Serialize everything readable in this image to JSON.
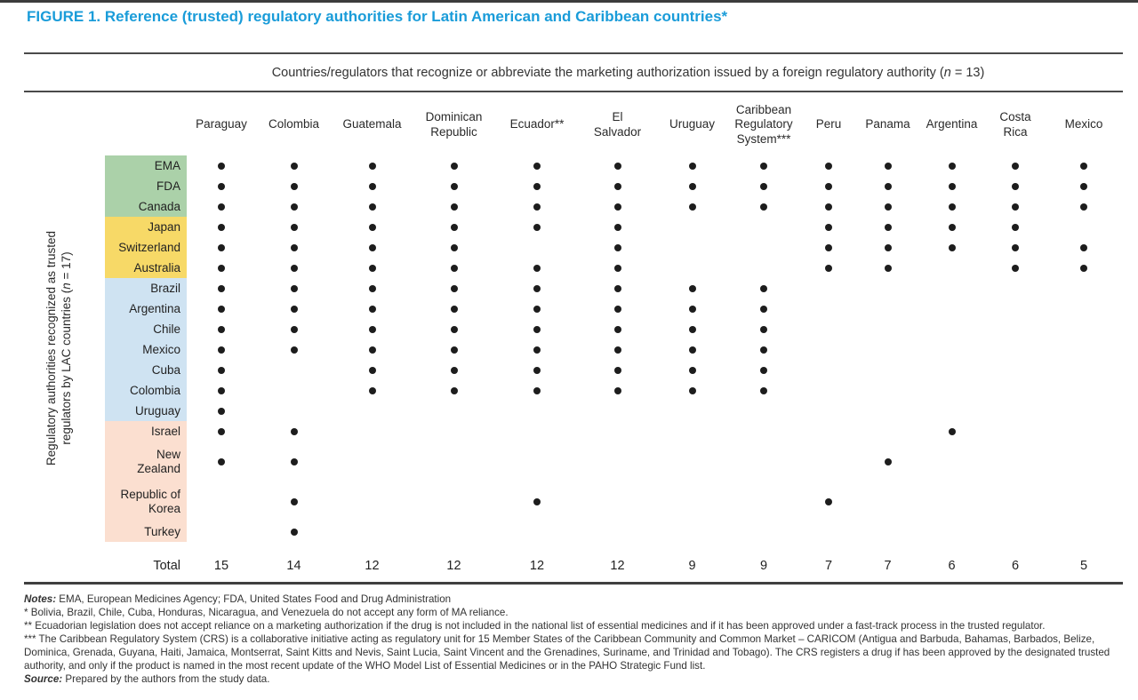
{
  "title": "FIGURE 1. Reference (trusted) regulatory authorities for Latin American and Caribbean countries*",
  "accent_color": "#1a9cd9",
  "span_header": {
    "pre": "Countries/regulators that recognize or abbreviate the marketing authorization issued by a foreign regulatory authority (",
    "n": "n",
    "post": " = 13)"
  },
  "y_axis": {
    "line1": "Regulatory authorities recognized as trusted",
    "line2_pre": "regulators by LAC countries (",
    "n": "n",
    "line2_post": " = 17)"
  },
  "chart_data": {
    "type": "table",
    "title": "Dot matrix of trusted regulatory authorities (rows) recognized by LAC countries/regulators (columns)",
    "dot_color": "#1d1d1d",
    "groups": {
      "green": "#abd1a9",
      "yellow": "#f7d967",
      "blue": "#cfe3f2",
      "pink": "#fbdfd0"
    },
    "columns": [
      "Paraguay",
      "Colombia",
      "Guatemala",
      "Dominican\nRepublic",
      "Ecuador**",
      "El\nSalvador",
      "Uruguay",
      "Caribbean\nRegulatory\nSystem***",
      "Peru",
      "Panama",
      "Argentina",
      "Costa\nRica",
      "Mexico"
    ],
    "rows": [
      {
        "label": "EMA",
        "group": "green",
        "marks": [
          1,
          1,
          1,
          1,
          1,
          1,
          1,
          1,
          1,
          1,
          1,
          1,
          1
        ]
      },
      {
        "label": "FDA",
        "group": "green",
        "marks": [
          1,
          1,
          1,
          1,
          1,
          1,
          1,
          1,
          1,
          1,
          1,
          1,
          1
        ]
      },
      {
        "label": "Canada",
        "group": "green",
        "marks": [
          1,
          1,
          1,
          1,
          1,
          1,
          1,
          1,
          1,
          1,
          1,
          1,
          1
        ]
      },
      {
        "label": "Japan",
        "group": "yellow",
        "marks": [
          1,
          1,
          1,
          1,
          1,
          1,
          0,
          0,
          1,
          1,
          1,
          1,
          0
        ]
      },
      {
        "label": "Switzerland",
        "group": "yellow",
        "marks": [
          1,
          1,
          1,
          1,
          0,
          1,
          0,
          0,
          1,
          1,
          1,
          1,
          1
        ]
      },
      {
        "label": "Australia",
        "group": "yellow",
        "marks": [
          1,
          1,
          1,
          1,
          1,
          1,
          0,
          0,
          1,
          1,
          0,
          1,
          1
        ]
      },
      {
        "label": "Brazil",
        "group": "blue",
        "marks": [
          1,
          1,
          1,
          1,
          1,
          1,
          1,
          1,
          0,
          0,
          0,
          0,
          0
        ]
      },
      {
        "label": "Argentina",
        "group": "blue",
        "marks": [
          1,
          1,
          1,
          1,
          1,
          1,
          1,
          1,
          0,
          0,
          0,
          0,
          0
        ]
      },
      {
        "label": "Chile",
        "group": "blue",
        "marks": [
          1,
          1,
          1,
          1,
          1,
          1,
          1,
          1,
          0,
          0,
          0,
          0,
          0
        ]
      },
      {
        "label": "Mexico",
        "group": "blue",
        "marks": [
          1,
          1,
          1,
          1,
          1,
          1,
          1,
          1,
          0,
          0,
          0,
          0,
          0
        ]
      },
      {
        "label": "Cuba",
        "group": "blue",
        "marks": [
          1,
          0,
          1,
          1,
          1,
          1,
          1,
          1,
          0,
          0,
          0,
          0,
          0
        ]
      },
      {
        "label": "Colombia",
        "group": "blue",
        "marks": [
          1,
          0,
          1,
          1,
          1,
          1,
          1,
          1,
          0,
          0,
          0,
          0,
          0
        ]
      },
      {
        "label": "Uruguay",
        "group": "blue",
        "marks": [
          1,
          0,
          0,
          0,
          0,
          0,
          0,
          0,
          0,
          0,
          0,
          0,
          0
        ]
      },
      {
        "label": "Israel",
        "group": "pink",
        "marks": [
          1,
          1,
          0,
          0,
          0,
          0,
          0,
          0,
          0,
          0,
          1,
          0,
          0
        ]
      },
      {
        "label": "New\nZealand",
        "group": "pink",
        "marks": [
          1,
          1,
          0,
          0,
          0,
          0,
          0,
          0,
          0,
          1,
          0,
          0,
          0
        ]
      },
      {
        "label": "Republic of\nKorea",
        "group": "pink",
        "marks": [
          0,
          1,
          0,
          0,
          1,
          0,
          0,
          0,
          1,
          0,
          0,
          0,
          0
        ]
      },
      {
        "label": "Turkey",
        "group": "pink",
        "marks": [
          0,
          1,
          0,
          0,
          0,
          0,
          0,
          0,
          0,
          0,
          0,
          0,
          0
        ]
      }
    ],
    "total_label": "Total",
    "totals": [
      15,
      14,
      12,
      12,
      12,
      12,
      9,
      9,
      7,
      7,
      6,
      6,
      5
    ]
  },
  "notes": [
    {
      "prefix": "Notes:",
      "text": " EMA, European Medicines Agency; FDA, United States Food and Drug Administration"
    },
    {
      "prefix": "",
      "text": "* Bolivia, Brazil, Chile, Cuba, Honduras, Nicaragua, and Venezuela do not accept any form of MA reliance."
    },
    {
      "prefix": "",
      "text": "** Ecuadorian legislation does not accept reliance on a marketing authorization if the drug is not included in the national list of essential medicines and if it has been approved under a fast-track process in the trusted regulator."
    },
    {
      "prefix": "",
      "text": "*** The Caribbean Regulatory System (CRS) is a collaborative initiative acting as regulatory unit for 15 Member States of the Caribbean Community and Common Market – CARICOM (Antigua and Barbuda, Bahamas, Barbados, Belize, Dominica, Grenada, Guyana, Haiti, Jamaica, Montserrat, Saint Kitts and Nevis, Saint Lucia, Saint Vincent and the Grenadines, Suriname, and Trinidad and Tobago). The CRS registers a drug if has been approved by the designated trusted authority, and only if the product is named in the most recent update of the WHO Model List of Essential Medicines or in the PAHO Strategic Fund list."
    },
    {
      "prefix": "Source:",
      "text": " Prepared by the authors from the study data."
    }
  ]
}
